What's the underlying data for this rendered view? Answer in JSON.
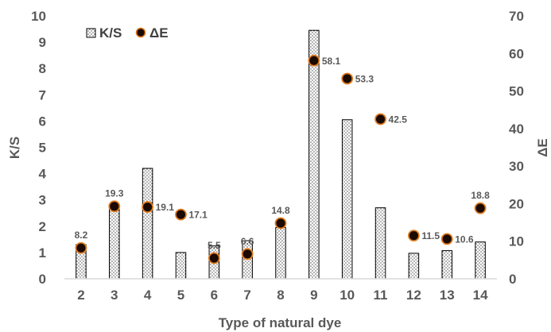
{
  "chart_data": {
    "type": "bar",
    "xlabel": "Type of natural dye",
    "ylabel": "K/S",
    "y2label": "ΔE",
    "categories": [
      "2",
      "3",
      "4",
      "5",
      "6",
      "7",
      "8",
      "9",
      "10",
      "11",
      "12",
      "13",
      "14"
    ],
    "ylim": [
      0,
      10
    ],
    "y2lim": [
      0,
      70
    ],
    "yticks": [
      "0",
      "1",
      "2",
      "3",
      "4",
      "5",
      "6",
      "7",
      "8",
      "9",
      "10"
    ],
    "y2ticks": [
      "0",
      "10",
      "20",
      "30",
      "40",
      "50",
      "60",
      "70"
    ],
    "grid": false,
    "legend_position": "top-left",
    "series": [
      {
        "name": "K/S",
        "type": "bar",
        "axis": "left",
        "pattern": "dotted",
        "values": [
          1.3,
          2.8,
          4.2,
          1.0,
          1.25,
          1.45,
          1.95,
          9.45,
          6.05,
          2.7,
          0.97,
          1.07,
          1.4
        ]
      },
      {
        "name": "ΔE",
        "type": "scatter",
        "axis": "right",
        "marker_color": "#1a0a00",
        "marker_edge_color": "#e07b20",
        "values": [
          8.2,
          19.3,
          19.1,
          17.1,
          5.5,
          6.6,
          14.8,
          58.1,
          53.3,
          42.5,
          11.5,
          10.6,
          18.8
        ],
        "labels": [
          "8.2",
          "19.3",
          "19.1",
          "17.1",
          "5.5",
          "6.6",
          "14.8",
          "58.1",
          "53.3",
          "42.5",
          "11.5",
          "10.6",
          "18.8"
        ],
        "label_positions": [
          "above",
          "above",
          "right",
          "right",
          "above",
          "above",
          "above",
          "right",
          "right",
          "right",
          "right",
          "right",
          "above"
        ]
      }
    ]
  }
}
